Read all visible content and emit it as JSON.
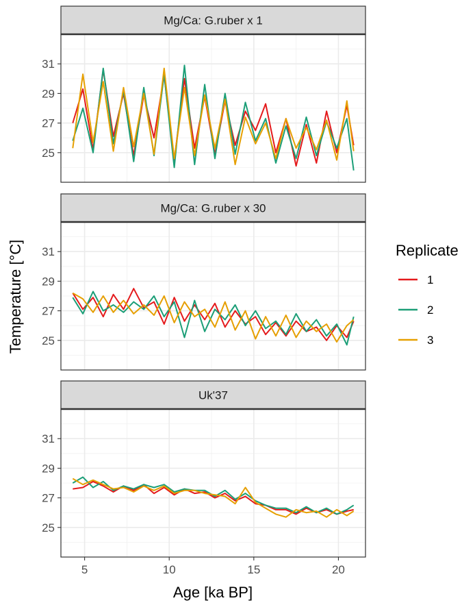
{
  "chart_data": {
    "type": "line",
    "xlabel": "Age [ka BP]",
    "ylabel": "Temperature [°C]",
    "xlim": [
      3.6,
      21.6
    ],
    "xticks": [
      5,
      10,
      15,
      20
    ],
    "ylim": [
      23,
      33
    ],
    "yticks": [
      25,
      27,
      29,
      31
    ],
    "grid": true,
    "legend": {
      "title": "Replicate",
      "position": "right",
      "entries": [
        {
          "label": "1",
          "color": "#e41a1c"
        },
        {
          "label": "2",
          "color": "#1b9e77"
        },
        {
          "label": "3",
          "color": "#e69f00"
        }
      ]
    },
    "panels": [
      {
        "title": "Mg/Ca: G.ruber x 1",
        "series": [
          {
            "name": "1",
            "color": "#e41a1c",
            "x": [
              4.3,
              4.9,
              5.5,
              6.1,
              6.7,
              7.3,
              7.9,
              8.5,
              9.1,
              9.7,
              10.3,
              10.9,
              11.5,
              12.1,
              12.7,
              13.3,
              13.9,
              14.5,
              15.1,
              15.7,
              16.3,
              16.9,
              17.5,
              18.1,
              18.7,
              19.3,
              19.9,
              20.5,
              20.9
            ],
            "y": [
              27.0,
              29.3,
              25.2,
              30.6,
              26.1,
              29.0,
              24.8,
              28.9,
              26.0,
              30.2,
              24.5,
              30.0,
              25.3,
              28.8,
              24.9,
              28.5,
              25.5,
              27.8,
              26.5,
              28.3,
              25.0,
              27.3,
              24.1,
              26.9,
              24.3,
              27.8,
              25.0,
              28.2,
              25.5
            ]
          },
          {
            "name": "2",
            "color": "#1b9e77",
            "x": [
              4.3,
              4.9,
              5.5,
              6.1,
              6.7,
              7.3,
              7.9,
              8.5,
              9.1,
              9.7,
              10.3,
              10.9,
              11.5,
              12.1,
              12.7,
              13.3,
              13.9,
              14.5,
              15.1,
              15.7,
              16.3,
              16.9,
              17.5,
              18.1,
              18.7,
              19.3,
              19.9,
              20.5,
              20.9
            ],
            "y": [
              25.8,
              28.0,
              25.0,
              30.7,
              25.6,
              29.2,
              24.4,
              29.4,
              24.8,
              30.3,
              24.0,
              30.9,
              24.2,
              29.6,
              24.6,
              29.0,
              24.9,
              28.4,
              25.8,
              27.3,
              24.3,
              26.8,
              24.6,
              27.4,
              24.8,
              27.1,
              25.3,
              27.3,
              23.8
            ]
          },
          {
            "name": "3",
            "color": "#e69f00",
            "x": [
              4.3,
              4.9,
              5.5,
              6.1,
              6.7,
              7.3,
              7.9,
              8.5,
              9.1,
              9.7,
              10.3,
              10.9,
              11.5,
              12.1,
              12.7,
              13.3,
              13.9,
              14.5,
              15.1,
              15.7,
              16.3,
              16.9,
              17.5,
              18.1,
              18.7,
              19.3,
              19.9,
              20.5,
              20.9
            ],
            "y": [
              25.3,
              30.3,
              25.7,
              29.8,
              25.1,
              29.4,
              25.4,
              29.0,
              24.9,
              30.7,
              24.6,
              29.4,
              24.8,
              28.9,
              25.3,
              28.6,
              24.2,
              27.4,
              25.6,
              27.0,
              24.6,
              27.3,
              25.3,
              26.7,
              25.2,
              27.2,
              24.5,
              28.5,
              25.1
            ]
          }
        ]
      },
      {
        "title": "Mg/Ca: G.ruber x 30",
        "series": [
          {
            "name": "1",
            "color": "#e41a1c",
            "x": [
              4.3,
              4.9,
              5.5,
              6.1,
              6.7,
              7.3,
              7.9,
              8.5,
              9.1,
              9.7,
              10.3,
              10.9,
              11.5,
              12.1,
              12.7,
              13.3,
              13.9,
              14.5,
              15.1,
              15.7,
              16.3,
              16.9,
              17.5,
              18.1,
              18.7,
              19.3,
              19.9,
              20.5,
              20.9
            ],
            "y": [
              28.2,
              27.1,
              27.9,
              26.6,
              28.1,
              27.1,
              28.5,
              27.2,
              27.6,
              26.1,
              27.9,
              26.3,
              27.4,
              26.4,
              27.5,
              25.9,
              27.0,
              26.1,
              26.6,
              25.4,
              26.2,
              25.3,
              26.3,
              25.6,
              25.9,
              25.0,
              26.0,
              25.2,
              26.3
            ]
          },
          {
            "name": "2",
            "color": "#1b9e77",
            "x": [
              4.3,
              4.9,
              5.5,
              6.1,
              6.7,
              7.3,
              7.9,
              8.5,
              9.1,
              9.7,
              10.3,
              10.9,
              11.5,
              12.1,
              12.7,
              13.3,
              13.9,
              14.5,
              15.1,
              15.7,
              16.3,
              16.9,
              17.5,
              18.1,
              18.7,
              19.3,
              19.9,
              20.5,
              20.9
            ],
            "y": [
              27.9,
              26.8,
              28.3,
              27.0,
              27.4,
              26.9,
              27.6,
              27.1,
              28.0,
              26.6,
              27.6,
              25.2,
              27.7,
              25.6,
              27.1,
              26.4,
              27.4,
              26.0,
              27.0,
              25.8,
              26.3,
              25.4,
              26.8,
              25.6,
              26.4,
              25.3,
              26.1,
              24.7,
              26.6
            ]
          },
          {
            "name": "3",
            "color": "#e69f00",
            "x": [
              4.3,
              4.9,
              5.5,
              6.1,
              6.7,
              7.3,
              7.9,
              8.5,
              9.1,
              9.7,
              10.3,
              10.9,
              11.5,
              12.1,
              12.7,
              13.3,
              13.9,
              14.5,
              15.1,
              15.7,
              16.3,
              16.9,
              17.5,
              18.1,
              18.7,
              19.3,
              19.9,
              20.5,
              20.9
            ],
            "y": [
              28.2,
              27.8,
              26.9,
              28.0,
              26.9,
              27.7,
              26.8,
              27.4,
              26.7,
              28.0,
              26.2,
              27.6,
              26.6,
              27.1,
              25.9,
              27.6,
              25.7,
              27.0,
              25.1,
              26.6,
              25.3,
              26.7,
              25.2,
              26.3,
              25.6,
              26.1,
              24.9,
              26.0,
              26.4
            ]
          }
        ]
      },
      {
        "title": "Uk'37",
        "series": [
          {
            "name": "1",
            "color": "#e41a1c",
            "x": [
              4.3,
              4.9,
              5.5,
              6.1,
              6.7,
              7.3,
              7.9,
              8.5,
              9.1,
              9.7,
              10.3,
              10.9,
              11.5,
              12.1,
              12.7,
              13.3,
              13.9,
              14.5,
              15.1,
              15.7,
              16.3,
              16.9,
              17.5,
              18.1,
              18.7,
              19.3,
              19.9,
              20.5,
              20.9
            ],
            "y": [
              27.6,
              27.7,
              28.1,
              27.8,
              27.4,
              27.8,
              27.5,
              27.9,
              27.3,
              27.7,
              27.2,
              27.6,
              27.3,
              27.4,
              27.0,
              27.3,
              26.8,
              27.1,
              26.6,
              26.5,
              26.2,
              26.2,
              25.9,
              26.3,
              26.0,
              26.2,
              25.9,
              26.1,
              26.2
            ]
          },
          {
            "name": "2",
            "color": "#1b9e77",
            "x": [
              4.3,
              4.9,
              5.5,
              6.1,
              6.7,
              7.3,
              7.9,
              8.5,
              9.1,
              9.7,
              10.3,
              10.9,
              11.5,
              12.1,
              12.7,
              13.3,
              13.9,
              14.5,
              15.1,
              15.7,
              16.3,
              16.9,
              17.5,
              18.1,
              18.7,
              19.3,
              19.9,
              20.5,
              20.9
            ],
            "y": [
              28.0,
              28.4,
              27.7,
              28.1,
              27.5,
              27.8,
              27.6,
              27.9,
              27.7,
              27.9,
              27.4,
              27.6,
              27.5,
              27.5,
              27.1,
              27.5,
              26.9,
              27.3,
              26.8,
              26.5,
              26.3,
              26.3,
              26.0,
              26.4,
              26.0,
              26.3,
              25.9,
              26.2,
              26.5
            ]
          },
          {
            "name": "3",
            "color": "#e69f00",
            "x": [
              4.3,
              4.9,
              5.5,
              6.1,
              6.7,
              7.3,
              7.9,
              8.5,
              9.1,
              9.7,
              10.3,
              10.9,
              11.5,
              12.1,
              12.7,
              13.3,
              13.9,
              14.5,
              15.1,
              15.7,
              16.3,
              16.9,
              17.5,
              18.1,
              18.7,
              19.3,
              19.9,
              20.5,
              20.9
            ],
            "y": [
              28.3,
              27.9,
              28.2,
              27.9,
              27.6,
              27.7,
              27.4,
              27.8,
              27.5,
              27.8,
              27.3,
              27.5,
              27.5,
              27.3,
              27.2,
              27.1,
              26.6,
              27.7,
              26.7,
              26.3,
              25.9,
              25.7,
              26.2,
              26.0,
              26.1,
              25.7,
              26.2,
              25.8,
              26.1
            ]
          }
        ]
      }
    ]
  }
}
